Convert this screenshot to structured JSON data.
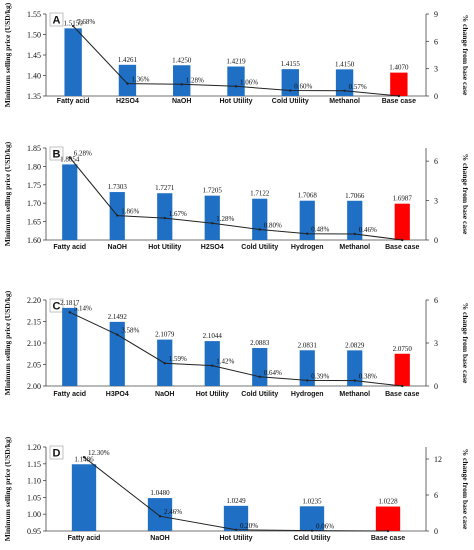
{
  "chart_data": [
    {
      "type": "bar",
      "panel_label": "A",
      "ylabel": "Minimum selling price (USD/kg)",
      "y2label": "% change from base case",
      "categories": [
        "Fatty acid",
        "H2SO4",
        "NaOH",
        "Hot Utility",
        "Cold Utility",
        "Methanol",
        "Base case"
      ],
      "values": [
        1.515,
        1.4261,
        1.425,
        1.4219,
        1.4155,
        1.415,
        1.407
      ],
      "value_labels": [
        "1.5150",
        "1.4261",
        "1.4250",
        "1.4219",
        "1.4155",
        "1.4150",
        "1.4070"
      ],
      "pct_change": [
        7.68,
        1.36,
        1.28,
        1.06,
        0.6,
        0.57,
        0
      ],
      "pct_labels": [
        "7.68%",
        "1.36%",
        "1.28%",
        "1.06%",
        "0.60%",
        "0.57%"
      ],
      "ylim": [
        1.35,
        1.55
      ],
      "yticks": [
        "1.35",
        "1.40",
        "1.45",
        "1.50",
        "1.55"
      ],
      "y2lim": [
        0,
        9
      ],
      "y2ticks": [
        "0",
        "3",
        "6",
        "9"
      ],
      "bar_color": "#1f6fc5",
      "base_color": "#ff0000"
    },
    {
      "type": "bar",
      "panel_label": "B",
      "ylabel": "Minimum selling price (USD/kg)",
      "y2label": "% change from base case",
      "categories": [
        "Fatty acid",
        "NaOH",
        "Hot Utility",
        "H2SO4",
        "Cold Utility",
        "Hydrogen",
        "Methanol",
        "Base case"
      ],
      "values": [
        1.8054,
        1.7303,
        1.7271,
        1.7205,
        1.7122,
        1.7068,
        1.7066,
        1.6987
      ],
      "value_labels": [
        "1.8054",
        "1.7303",
        "1.7271",
        "1.7205",
        "1.7122",
        "1.7068",
        "1.7066",
        "1.6987"
      ],
      "pct_change": [
        6.28,
        1.86,
        1.67,
        1.28,
        0.8,
        0.48,
        0.46,
        0
      ],
      "pct_labels": [
        "6.28%",
        "1.86%",
        "1.67%",
        "1.28%",
        "0.80%",
        "0.48%",
        "0.46%"
      ],
      "ylim": [
        1.6,
        1.85
      ],
      "yticks": [
        "1.60",
        "1.65",
        "1.70",
        "1.75",
        "1.80",
        "1.85"
      ],
      "y2lim": [
        0,
        7
      ],
      "y2ticks": [
        "0",
        "3",
        "6"
      ],
      "bar_color": "#1f6fc5",
      "base_color": "#ff0000"
    },
    {
      "type": "bar",
      "panel_label": "C",
      "ylabel": "Minimum selling price (USD/kg)",
      "y2label": "% change from base case",
      "categories": [
        "Fatty acid",
        "H3PO4",
        "NaOH",
        "Hot Utility",
        "Cold Utility",
        "Hydrogen",
        "Methanol",
        "Base case"
      ],
      "values": [
        2.1817,
        2.1492,
        2.1079,
        2.1044,
        2.0883,
        2.0831,
        2.0829,
        2.075
      ],
      "value_labels": [
        "2.1817",
        "2.1492",
        "2.1079",
        "2.1044",
        "2.0883",
        "2.0831",
        "2.0829",
        "2.0750"
      ],
      "pct_change": [
        5.14,
        3.58,
        1.59,
        1.42,
        0.64,
        0.39,
        0.38,
        0
      ],
      "pct_labels": [
        "5.14%",
        "3.58%",
        "1.59%",
        "1.42%",
        "0.64%",
        "0.39%",
        "0.38%"
      ],
      "ylim": [
        2.0,
        2.2
      ],
      "yticks": [
        "2.00",
        "2.05",
        "2.10",
        "2.15",
        "2.20"
      ],
      "y2lim": [
        0,
        6
      ],
      "y2ticks": [
        "0",
        "3",
        "6"
      ],
      "bar_color": "#1f6fc5",
      "base_color": "#ff0000"
    },
    {
      "type": "bar",
      "panel_label": "D",
      "ylabel": "Minimum selling price (USD/kg)",
      "y2label": "% change from base case",
      "categories": [
        "Fatty acid",
        "NaOH",
        "Hot Utility",
        "Cold Utility",
        "Base case"
      ],
      "values": [
        1.1486,
        1.048,
        1.0249,
        1.0235,
        1.0228
      ],
      "value_labels": [
        "1.1486",
        "1.0480",
        "1.0249",
        "1.0235",
        "1.0228"
      ],
      "pct_change": [
        12.3,
        2.46,
        0.2,
        0.06,
        0
      ],
      "pct_labels": [
        "12.30%",
        "2.46%",
        "0.20%",
        "0.06%"
      ],
      "ylim": [
        0.95,
        1.2
      ],
      "yticks": [
        "0.95",
        "1.00",
        "1.05",
        "1.10",
        "1.15",
        "1.20"
      ],
      "y2lim": [
        0,
        14
      ],
      "y2ticks": [
        "0",
        "6",
        "12"
      ],
      "bar_color": "#1f6fc5",
      "base_color": "#ff0000"
    }
  ]
}
